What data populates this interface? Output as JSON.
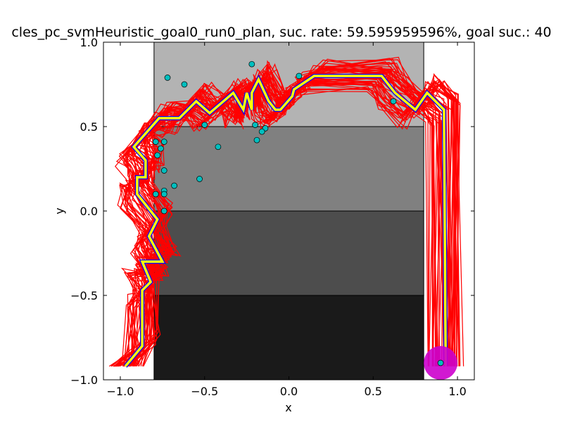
{
  "chart_data": {
    "type": "line",
    "title": "cles_pc_svmHeuristic_goal0_run0_plan, suc. rate: 59.595959596%, goal suc.: 40",
    "xlabel": "x",
    "ylabel": "y",
    "xlim": [
      -1.1,
      1.1
    ],
    "ylim": [
      -1.0,
      1.0
    ],
    "x_ticks": [
      -1.0,
      -0.5,
      0.0,
      0.5,
      1.0
    ],
    "x_tick_labels": [
      "−1.0",
      "−0.5",
      "0.0",
      "0.5",
      "1.0"
    ],
    "y_ticks": [
      -1.0,
      -0.5,
      0.0,
      0.5,
      1.0
    ],
    "y_tick_labels": [
      "−1.0",
      "−0.5",
      "0.0",
      "0.5",
      "1.0"
    ],
    "grid": false,
    "background_bands": [
      {
        "x": [
          -0.8,
          0.8
        ],
        "y": [
          0.5,
          1.0
        ],
        "color": "#b3b3b3"
      },
      {
        "x": [
          -0.8,
          0.8
        ],
        "y": [
          0.0,
          0.5
        ],
        "color": "#808080"
      },
      {
        "x": [
          -0.8,
          0.8
        ],
        "y": [
          -0.5,
          0.0
        ],
        "color": "#4d4d4d"
      },
      {
        "x": [
          -0.8,
          0.8
        ],
        "y": [
          -1.0,
          -0.5
        ],
        "color": "#1a1a1a"
      }
    ],
    "goal": {
      "x": 0.9,
      "y": -0.9,
      "radius": 0.1,
      "color": "#cc00cc"
    },
    "series": [
      {
        "color": "#ffff00",
        "outline_color": "#0000ff",
        "points": [
          [
            -0.97,
            -0.92
          ],
          [
            -0.87,
            -0.8
          ],
          [
            -0.87,
            -0.47
          ],
          [
            -0.82,
            -0.42
          ],
          [
            -0.87,
            -0.3
          ],
          [
            -0.75,
            -0.3
          ],
          [
            -0.83,
            -0.15
          ],
          [
            -0.78,
            -0.05
          ],
          [
            -0.9,
            0.1
          ],
          [
            -0.9,
            0.2
          ],
          [
            -0.85,
            0.2
          ],
          [
            -0.85,
            0.3
          ],
          [
            -0.92,
            0.38
          ],
          [
            -0.77,
            0.55
          ],
          [
            -0.65,
            0.55
          ],
          [
            -0.55,
            0.65
          ],
          [
            -0.47,
            0.58
          ],
          [
            -0.33,
            0.7
          ],
          [
            -0.27,
            0.6
          ],
          [
            -0.25,
            0.7
          ],
          [
            -0.22,
            0.6
          ],
          [
            -0.22,
            0.7
          ],
          [
            -0.18,
            0.78
          ],
          [
            -0.12,
            0.65
          ],
          [
            -0.08,
            0.6
          ],
          [
            -0.05,
            0.6
          ],
          [
            0.02,
            0.68
          ],
          [
            0.03,
            0.72
          ],
          [
            0.15,
            0.8
          ],
          [
            0.55,
            0.8
          ],
          [
            0.63,
            0.7
          ],
          [
            0.75,
            0.6
          ],
          [
            0.82,
            0.7
          ],
          [
            0.92,
            0.6
          ],
          [
            0.93,
            -0.92
          ]
        ]
      }
    ],
    "noisy_paths": {
      "color": "#ff0000"
    },
    "markers": {
      "color": "#00bfbf",
      "points": [
        [
          -0.72,
          0.79
        ],
        [
          -0.62,
          0.75
        ],
        [
          -0.22,
          0.87
        ],
        [
          0.06,
          0.8
        ],
        [
          0.62,
          0.65
        ],
        [
          -0.5,
          0.51
        ],
        [
          -0.2,
          0.51
        ],
        [
          -0.14,
          0.49
        ],
        [
          -0.16,
          0.47
        ],
        [
          -0.19,
          0.42
        ],
        [
          -0.42,
          0.38
        ],
        [
          -0.79,
          0.41
        ],
        [
          -0.74,
          0.41
        ],
        [
          -0.76,
          0.37
        ],
        [
          -0.78,
          0.33
        ],
        [
          -0.74,
          0.24
        ],
        [
          -0.53,
          0.19
        ],
        [
          -0.68,
          0.15
        ],
        [
          -0.74,
          0.12
        ],
        [
          -0.74,
          0.1
        ],
        [
          -0.79,
          0.1
        ],
        [
          -0.74,
          0.0
        ],
        [
          0.9,
          -0.9
        ]
      ]
    }
  }
}
